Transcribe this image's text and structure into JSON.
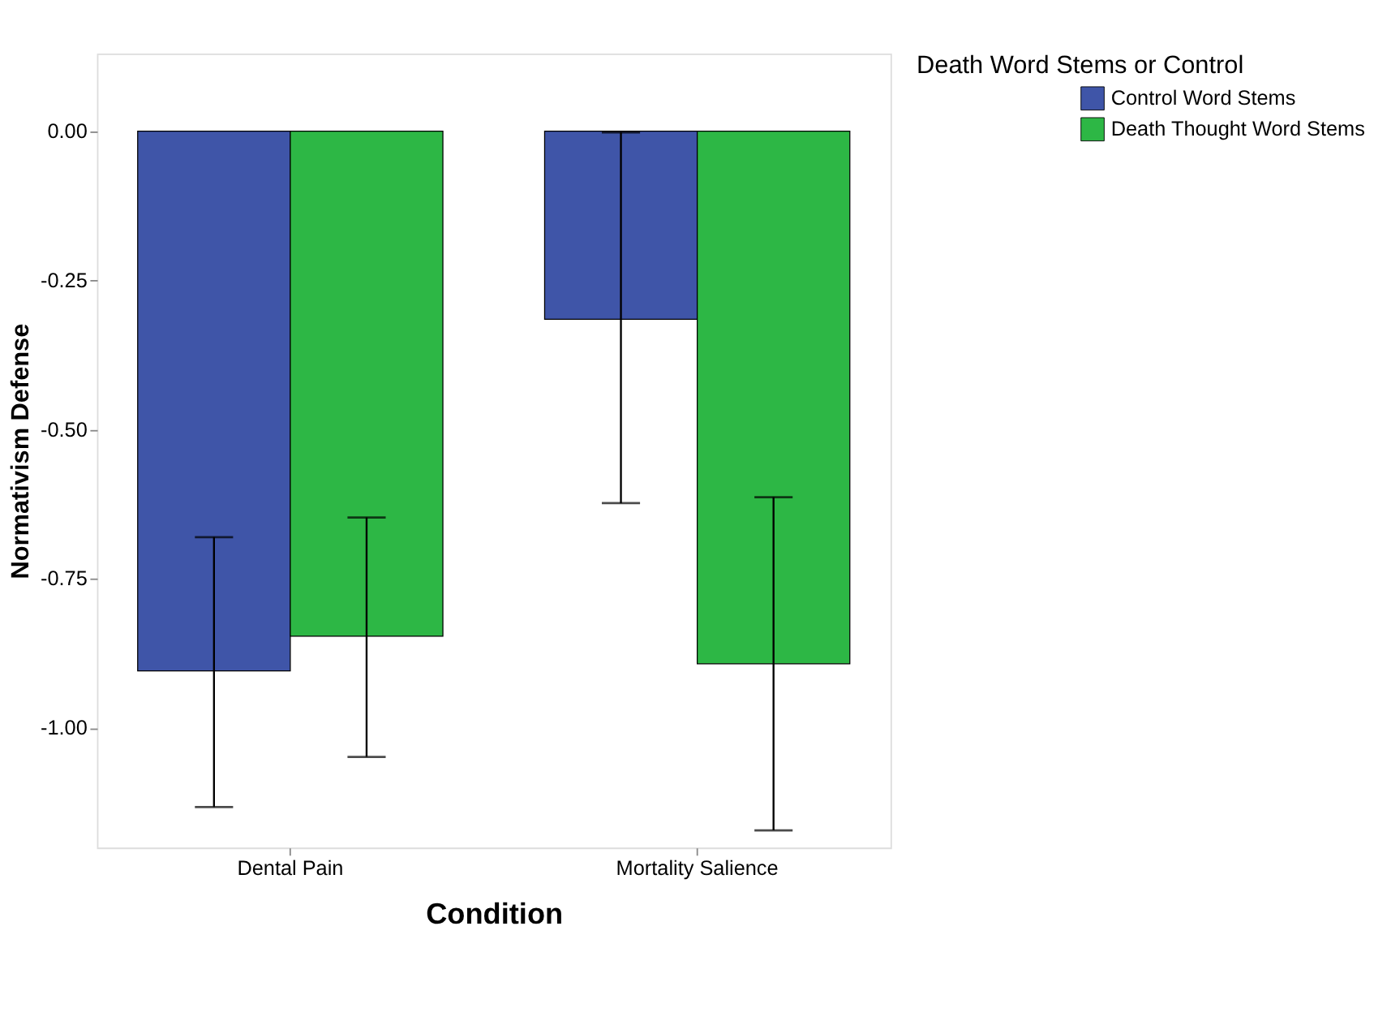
{
  "chart_data": {
    "type": "bar",
    "xlabel": "Condition",
    "ylabel": "Normativism Defense",
    "legend_title": "Death Word Stems or Control",
    "categories": [
      "Dental Pain",
      "Mortality Salience"
    ],
    "series": [
      {
        "name": "Control Word Stems",
        "color": "#3f55a8",
        "values": [
          -0.904,
          -0.315
        ],
        "errors": [
          [
            -1.132,
            -0.68
          ],
          [
            -0.623,
            -0.002
          ]
        ]
      },
      {
        "name": "Death Thought Word Stems",
        "color": "#2db745",
        "values": [
          -0.846,
          -0.892
        ],
        "errors": [
          [
            -1.048,
            -0.647
          ],
          [
            -1.171,
            -0.613
          ]
        ]
      }
    ],
    "ylim": [
      -1.2,
      0.13
    ],
    "yticks": [
      {
        "value": 0,
        "label": "0.00"
      },
      {
        "value": -0.25,
        "label": "-0.25"
      },
      {
        "value": -0.5,
        "label": "-0.50"
      },
      {
        "value": -0.75,
        "label": "-0.75"
      },
      {
        "value": -1.0,
        "label": "-1.00"
      }
    ],
    "grid": false,
    "legend": "top right"
  }
}
